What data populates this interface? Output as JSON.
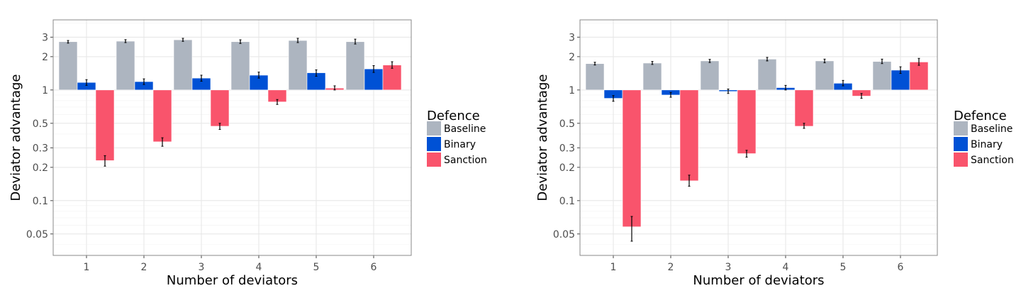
{
  "colors": {
    "Baseline": "#adb5c0",
    "Binary": "#0051d5",
    "Sanction": "#f9546c"
  },
  "chart_data": [
    {
      "type": "bar",
      "title": "",
      "xlabel": "Number of deviators",
      "ylabel": "Deviator advantage",
      "yscale": "log",
      "ylim": [
        0.032,
        4.3
      ],
      "yticks": [
        0.05,
        0.1,
        0.2,
        0.3,
        0.5,
        1,
        2,
        3
      ],
      "ytick_labels": [
        "0.05",
        "0.1",
        "0.2",
        "0.3",
        "0.5",
        "1",
        "2",
        "3"
      ],
      "bar_baseline": 1,
      "grid": true,
      "legend": {
        "title": "Defence",
        "placement": "right"
      },
      "categories": [
        "1",
        "2",
        "3",
        "4",
        "5",
        "6"
      ],
      "series": [
        {
          "name": "Baseline",
          "values": [
            2.73,
            2.76,
            2.84,
            2.73,
            2.8,
            2.73
          ],
          "error_low": [
            2.65,
            2.68,
            2.75,
            2.63,
            2.68,
            2.6
          ],
          "error_high": [
            2.8,
            2.85,
            2.93,
            2.84,
            2.93,
            2.88
          ]
        },
        {
          "name": "Binary",
          "values": [
            1.17,
            1.19,
            1.28,
            1.36,
            1.43,
            1.55
          ],
          "error_low": [
            1.1,
            1.12,
            1.2,
            1.28,
            1.33,
            1.44
          ],
          "error_high": [
            1.24,
            1.26,
            1.36,
            1.45,
            1.52,
            1.66
          ]
        },
        {
          "name": "Sanction",
          "values": [
            0.23,
            0.34,
            0.47,
            0.78,
            1.04,
            1.68
          ],
          "error_low": [
            0.205,
            0.31,
            0.44,
            0.74,
            1.0,
            1.57
          ],
          "error_high": [
            0.255,
            0.37,
            0.5,
            0.82,
            1.09,
            1.8
          ]
        }
      ]
    },
    {
      "type": "bar",
      "title": "",
      "xlabel": "Number of deviators",
      "ylabel": "Deviator advantage",
      "yscale": "log",
      "ylim": [
        0.032,
        4.3
      ],
      "yticks": [
        0.05,
        0.1,
        0.2,
        0.3,
        0.5,
        1,
        2,
        3
      ],
      "ytick_labels": [
        "0.05",
        "0.1",
        "0.2",
        "0.3",
        "0.5",
        "1",
        "2",
        "3"
      ],
      "bar_baseline": 1,
      "grid": true,
      "legend": {
        "title": "Defence",
        "placement": "right"
      },
      "categories": [
        "1",
        "2",
        "3",
        "4",
        "5",
        "6"
      ],
      "series": [
        {
          "name": "Baseline",
          "values": [
            1.73,
            1.75,
            1.83,
            1.9,
            1.83,
            1.81
          ],
          "error_low": [
            1.68,
            1.7,
            1.77,
            1.83,
            1.76,
            1.73
          ],
          "error_high": [
            1.78,
            1.81,
            1.89,
            1.97,
            1.9,
            1.9
          ]
        },
        {
          "name": "Binary",
          "values": [
            0.84,
            0.9,
            0.97,
            1.05,
            1.15,
            1.51
          ],
          "error_low": [
            0.79,
            0.86,
            0.93,
            1.0,
            1.09,
            1.41
          ],
          "error_high": [
            0.89,
            0.95,
            1.02,
            1.1,
            1.22,
            1.62
          ]
        },
        {
          "name": "Sanction",
          "values": [
            0.058,
            0.151,
            0.266,
            0.47,
            0.88,
            1.79
          ],
          "error_low": [
            0.043,
            0.135,
            0.247,
            0.45,
            0.84,
            1.67
          ],
          "error_high": [
            0.072,
            0.17,
            0.285,
            0.5,
            0.93,
            1.93
          ]
        }
      ]
    }
  ]
}
